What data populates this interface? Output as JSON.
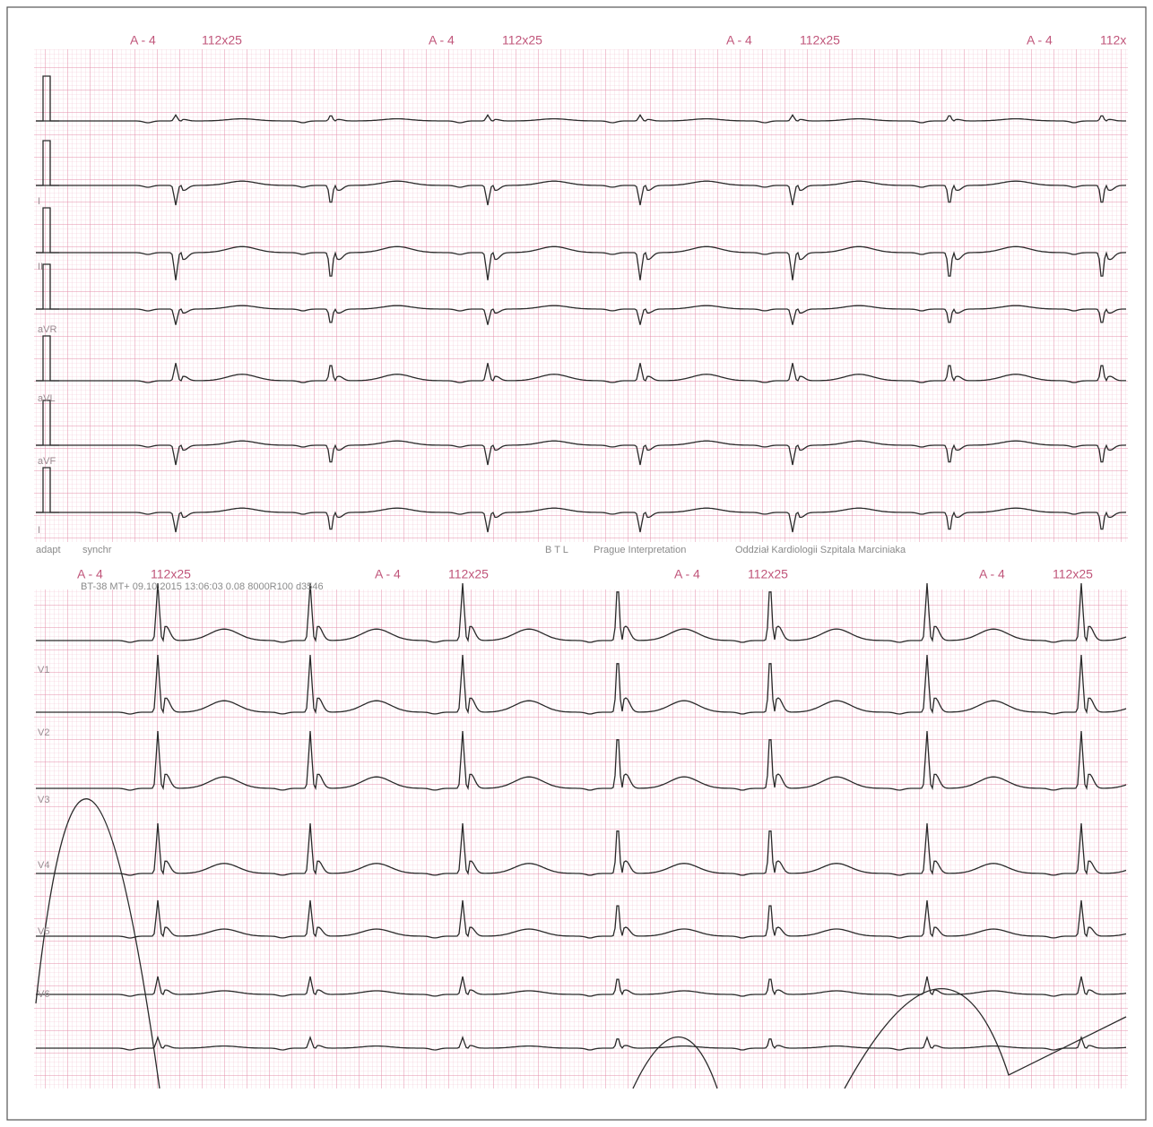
{
  "top_strip": {
    "headers": [
      {
        "lead": "A - 4",
        "format": "112x25"
      },
      {
        "lead": "A - 4",
        "format": "112x25"
      },
      {
        "lead": "A - 4",
        "format": "112x25"
      },
      {
        "lead": "A - 4",
        "format": "112x"
      }
    ],
    "lead_labels": [
      "I",
      "II",
      "aVR",
      "aVL",
      "aVF",
      "I"
    ],
    "footer": [
      "adapt",
      "synchr",
      "B T L",
      "Prague Interpretation",
      "Oddział Kardiologii Szpitala Marciniaka"
    ]
  },
  "bottom_strip": {
    "headers": [
      {
        "lead": "A - 4",
        "format": "112x25"
      },
      {
        "lead": "A - 4",
        "format": "112x25"
      },
      {
        "lead": "A - 4",
        "format": "112x25"
      },
      {
        "lead": "A - 4",
        "format": "112x25"
      }
    ],
    "recording_info": "BT-38 MT+ 09.10.2015 13:06:03 0.08 8000R100 d3546",
    "lead_labels": [
      "V1",
      "V2",
      "V3",
      "V4",
      "V5",
      "V6"
    ]
  }
}
